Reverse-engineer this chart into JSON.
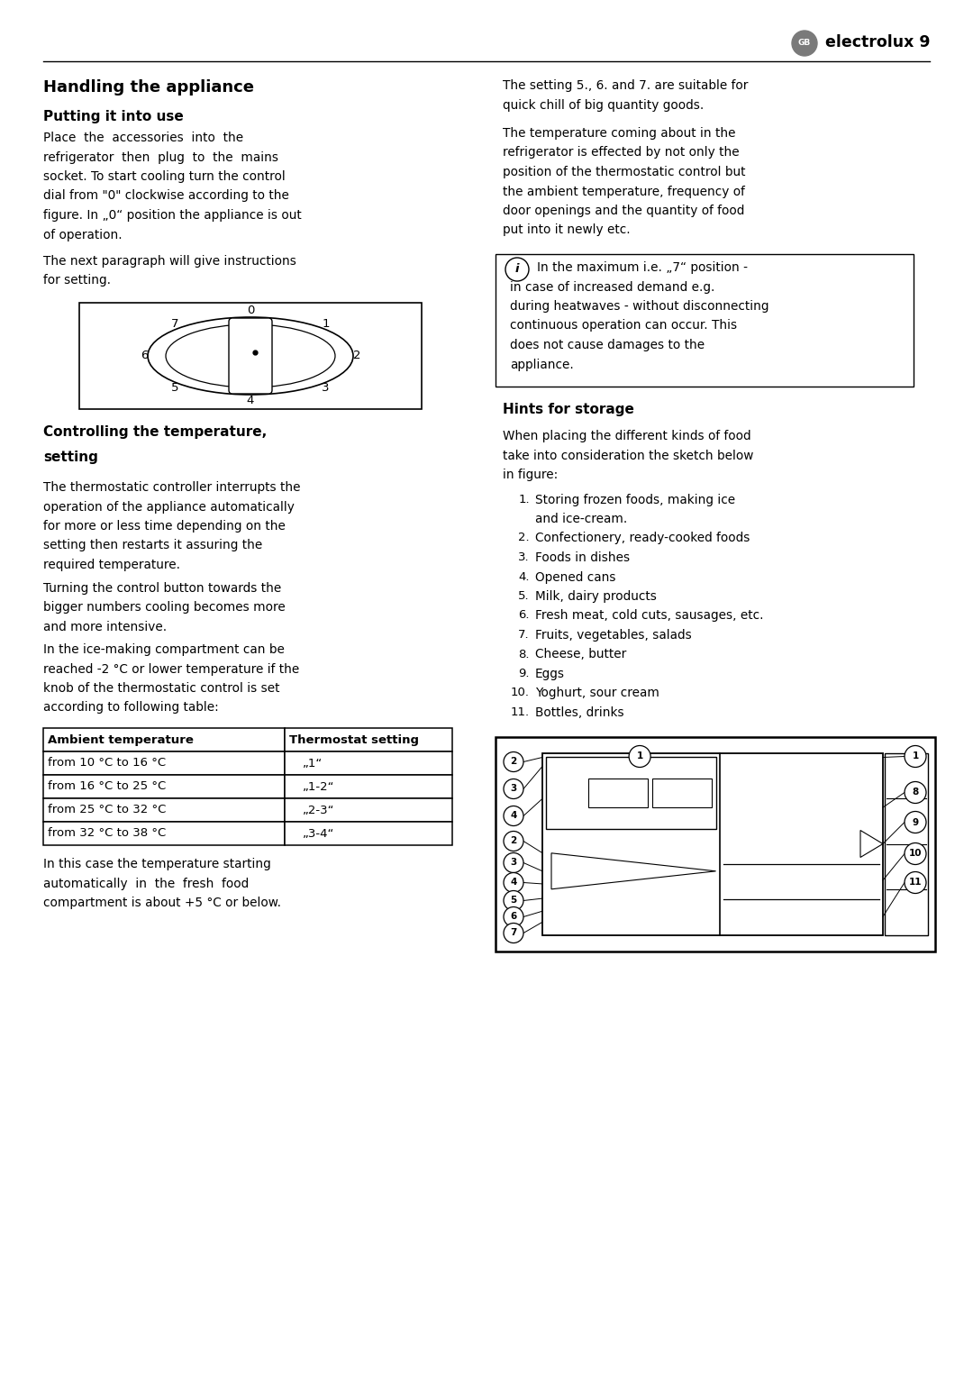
{
  "bg_color": "#ffffff",
  "section1_title": "Handling the appliance",
  "subsection1_title": "Putting it into use",
  "subsection2_title_line1": "Controlling the temperature,",
  "subsection2_title_line2": "setting",
  "hints_title": "Hints for storage",
  "table_headers": [
    "Ambient temperature",
    "Thermostat setting"
  ],
  "table_rows": [
    [
      "from 10 °C to 16 °C",
      "„1“"
    ],
    [
      "from 16 °C to 25 °C",
      "„1-2“"
    ],
    [
      "from 25 °C to 32 °C",
      "„2-3“"
    ],
    [
      "from 32 °C to 38 °C",
      "„3-4“"
    ]
  ],
  "body1_lines": [
    "Place  the  accessories  into  the",
    "refrigerator  then  plug  to  the  mains",
    "socket. To start cooling turn the control",
    "dial from \"0\" clockwise according to the",
    "figure. In „0“ position the appliance is out",
    "of operation."
  ],
  "body2_lines": [
    "The next paragraph will give instructions",
    "for setting."
  ],
  "ctrl_lines1": [
    "The thermostatic controller interrupts the",
    "operation of the appliance automatically",
    "for more or less time depending on the",
    "setting then restarts it assuring the",
    "required temperature."
  ],
  "ctrl_lines2": [
    "Turning the control button towards the",
    "bigger numbers cooling becomes more",
    "and more intensive."
  ],
  "ctrl_lines3": [
    "In the ice-making compartment can be",
    "reached -2 °C or lower temperature if the",
    "knob of the thermostatic control is set",
    "according to following table:"
  ],
  "body4_lines": [
    "In this case the temperature starting",
    "automatically  in  the  fresh  food",
    "compartment is about +5 °C or below."
  ],
  "right_lines1": [
    "The setting 5., 6. and 7. are suitable for",
    "quick chill of big quantity goods."
  ],
  "right_lines2": [
    "The temperature coming about in the",
    "refrigerator is effected by not only the",
    "position of the thermostatic control but",
    "the ambient temperature, frequency of",
    "door openings and the quantity of food",
    "put into it newly etc."
  ],
  "info_lines": [
    "In the maximum i.e. „7“ position -",
    "in case of increased demand e.g.",
    "during heatwaves - without disconnecting",
    "continuous operation can occur. This",
    "does not cause damages to the",
    "appliance."
  ],
  "hints_intro_lines": [
    "When placing the different kinds of food",
    "take into consideration the sketch below",
    "in figure:"
  ],
  "hints_list": [
    [
      "Storing frozen foods, making ice",
      "and ice-cream."
    ],
    [
      "Confectionery, ready-cooked foods"
    ],
    [
      "Foods in dishes"
    ],
    [
      "Opened cans"
    ],
    [
      "Milk, dairy products"
    ],
    [
      "Fresh meat, cold cuts, sausages, etc."
    ],
    [
      "Fruits, vegetables, salads"
    ],
    [
      "Cheese, butter"
    ],
    [
      "Eggs"
    ],
    [
      "Yoghurt, sour cream"
    ],
    [
      "Bottles, drinks"
    ]
  ],
  "dial_numbers": [
    "0",
    "1",
    "2",
    "3",
    "4",
    "5",
    "6",
    "7"
  ],
  "dial_angles_deg": [
    90,
    45,
    0,
    -45,
    -90,
    -135,
    180,
    135
  ],
  "fridge_left_nums": [
    "2",
    "3",
    "4",
    "2",
    "3",
    "4",
    "5",
    "6",
    "7"
  ],
  "fridge_right_nums": [
    "1",
    "8",
    "9",
    "10",
    "11"
  ]
}
